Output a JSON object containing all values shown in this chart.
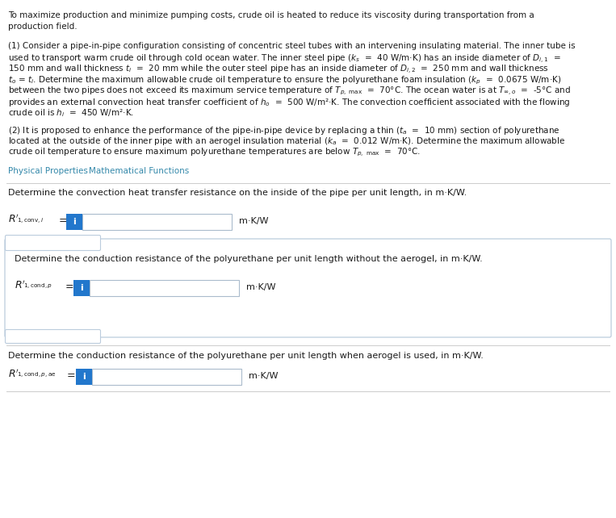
{
  "bg_color": "#ffffff",
  "text_color": "#1a1a1a",
  "link_color": "#3388aa",
  "blue_box_color": "#2277cc",
  "input_box_border": "#aabbcc",
  "section_border": "#bbccdd",
  "section_bg": "#ffffff",
  "intro_lines": [
    "To maximize production and minimize pumping costs, crude oil is heated to reduce its viscosity during transportation from a",
    "production field."
  ],
  "p1_lines": [
    "(1) Consider a pipe-in-pipe configuration consisting of concentric steel tubes with an intervening insulating material. The inner tube is",
    "used to transport warm crude oil through cold ocean water. The inner steel pipe ($k_s$  =  40 W/m·K) has an inside diameter of $D_{i,1}$  =",
    "150 mm and wall thickness $t_i$  =  20 mm while the outer steel pipe has an inside diameter of $D_{i,2}$  =  250 mm and wall thickness",
    "$t_o$ = $t_i$. Determine the maximum allowable crude oil temperature to ensure the polyurethane foam insulation ($k_p$  =  0.0675 W/m·K)",
    "between the two pipes does not exceed its maximum service temperature of $T_{p,\\ \\mathrm{max}}$  =  70°C. The ocean water is at $T_{\\infty,o}$  =  -5°C and",
    "provides an external convection heat transfer coefficient of $h_o$  =  500 W/m²·K. The convection coefficient associated with the flowing",
    "crude oil is $h_i$  =  450 W/m²·K."
  ],
  "p2_lines": [
    "(2) It is proposed to enhance the performance of the pipe-in-pipe device by replacing a thin ($t_a$  =  10 mm) section of polyurethane",
    "located at the outside of the inner pipe with an aerogel insulation material ($k_a$  =  0.012 W/m·K). Determine the maximum allowable",
    "crude oil temperature to ensure maximum polyurethane temperatures are below $T_{p,\\ \\mathrm{max}}$  =  70°C."
  ],
  "link1": "Physical Properties",
  "link2": "Mathematical Functions",
  "q1_label": "Determine the convection heat transfer resistance on the inside of the pipe per unit length, in m·K/W.",
  "q1_var": "$R'$",
  "q1_sub": "$_{1,\\mathrm{conv},i}$",
  "q1_unit": "m·K/W",
  "q2_label": "Determine the conduction resistance of the polyurethane per unit length without the aerogel, in m·K/W.",
  "q2_var": "$R'$",
  "q2_sub": "$_{1,\\mathrm{cond},p}$",
  "q2_unit": "m·K/W",
  "q3_label": "Determine the conduction resistance of the polyurethane per unit length when aerogel is used, in m·K/W.",
  "q3_var": "$R'$",
  "q3_sub": "$_{1,\\mathrm{cond},p,\\mathrm{ae}}$",
  "q3_unit": "m·K/W",
  "fig_w": 7.63,
  "fig_h": 6.42,
  "dpi": 100
}
